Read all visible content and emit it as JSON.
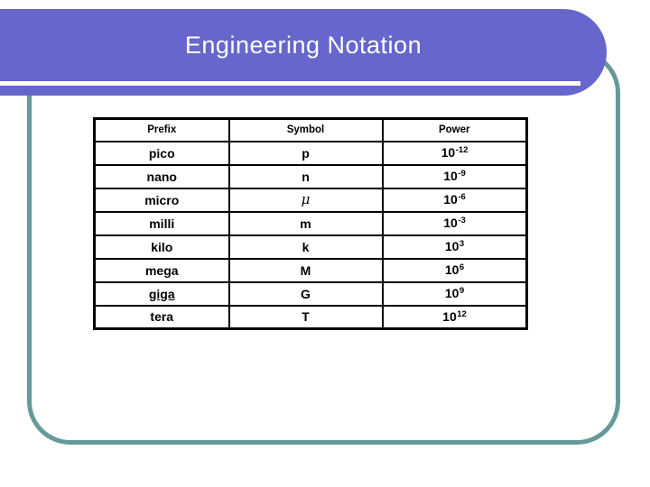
{
  "slide": {
    "title": "Engineering Notation",
    "colors": {
      "banner": "#6666cc",
      "frame": "#669999",
      "title_text": "#ffffff",
      "table_border": "#000000",
      "table_text": "#000000",
      "background": "#ffffff"
    },
    "table": {
      "headers": [
        "Prefix",
        "Symbol",
        "Power"
      ],
      "rows": [
        {
          "prefix": "pico",
          "symbol": "p",
          "power_base": "10",
          "power_exponent": "-12"
        },
        {
          "prefix": "nano",
          "symbol": "n",
          "power_base": "10",
          "power_exponent": "-9"
        },
        {
          "prefix": "micro",
          "symbol": "μ",
          "power_base": "10",
          "power_exponent": "-6"
        },
        {
          "prefix": "milli",
          "symbol": "m",
          "power_base": "10",
          "power_exponent": "-3"
        },
        {
          "prefix": "kilo",
          "symbol": "k",
          "power_base": "10",
          "power_exponent": "3"
        },
        {
          "prefix": "mega",
          "symbol": "M",
          "power_base": "10",
          "power_exponent": "6"
        },
        {
          "prefix": "giga",
          "symbol": "G",
          "power_base": "10",
          "power_exponent": "9"
        },
        {
          "prefix": "tera",
          "symbol": "T",
          "power_base": "10",
          "power_exponent": "12"
        }
      ]
    }
  }
}
